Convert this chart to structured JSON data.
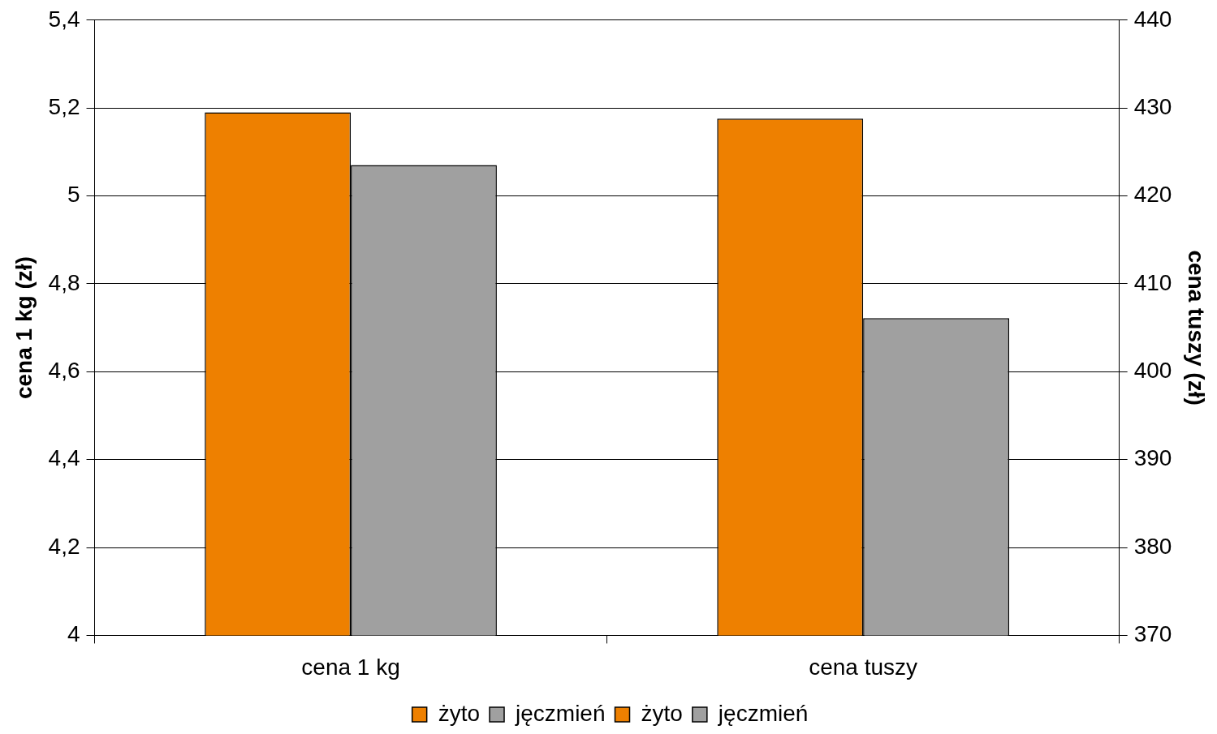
{
  "chart_data": {
    "type": "bar",
    "ylabel": "cena 1 kg (zł)",
    "y2label": "cena tuszy (zł)",
    "categories": [
      "cena 1 kg",
      "cena tuszy"
    ],
    "series": [
      {
        "name": "żyto",
        "color": "#ee8000",
        "values": [
          5.19,
          null
        ]
      },
      {
        "name": "jęczmień",
        "color": "#a0a0a0",
        "values": [
          5.07,
          null
        ]
      },
      {
        "name": "żyto",
        "color": "#ee8000",
        "values": [
          null,
          428.8
        ],
        "axis": "y2"
      },
      {
        "name": "jęczmień",
        "color": "#a0a0a0",
        "values": [
          null,
          406.1
        ],
        "axis": "y2"
      }
    ],
    "ylim": [
      4,
      5.4
    ],
    "yticks": [
      4,
      {
        "value": 4.2,
        "label": "4,2"
      },
      {
        "value": 4.4,
        "label": "4,4"
      },
      {
        "value": 4.6,
        "label": "4,6"
      },
      {
        "value": 4.8,
        "label": "4,8"
      },
      5,
      {
        "value": 5.2,
        "label": "5,2"
      },
      {
        "value": 5.4,
        "label": "5,4"
      }
    ],
    "y2lim": [
      370,
      440
    ],
    "y2ticks": [
      370,
      380,
      390,
      400,
      410,
      420,
      430,
      440
    ],
    "grid": "y",
    "legend": "bottom"
  }
}
